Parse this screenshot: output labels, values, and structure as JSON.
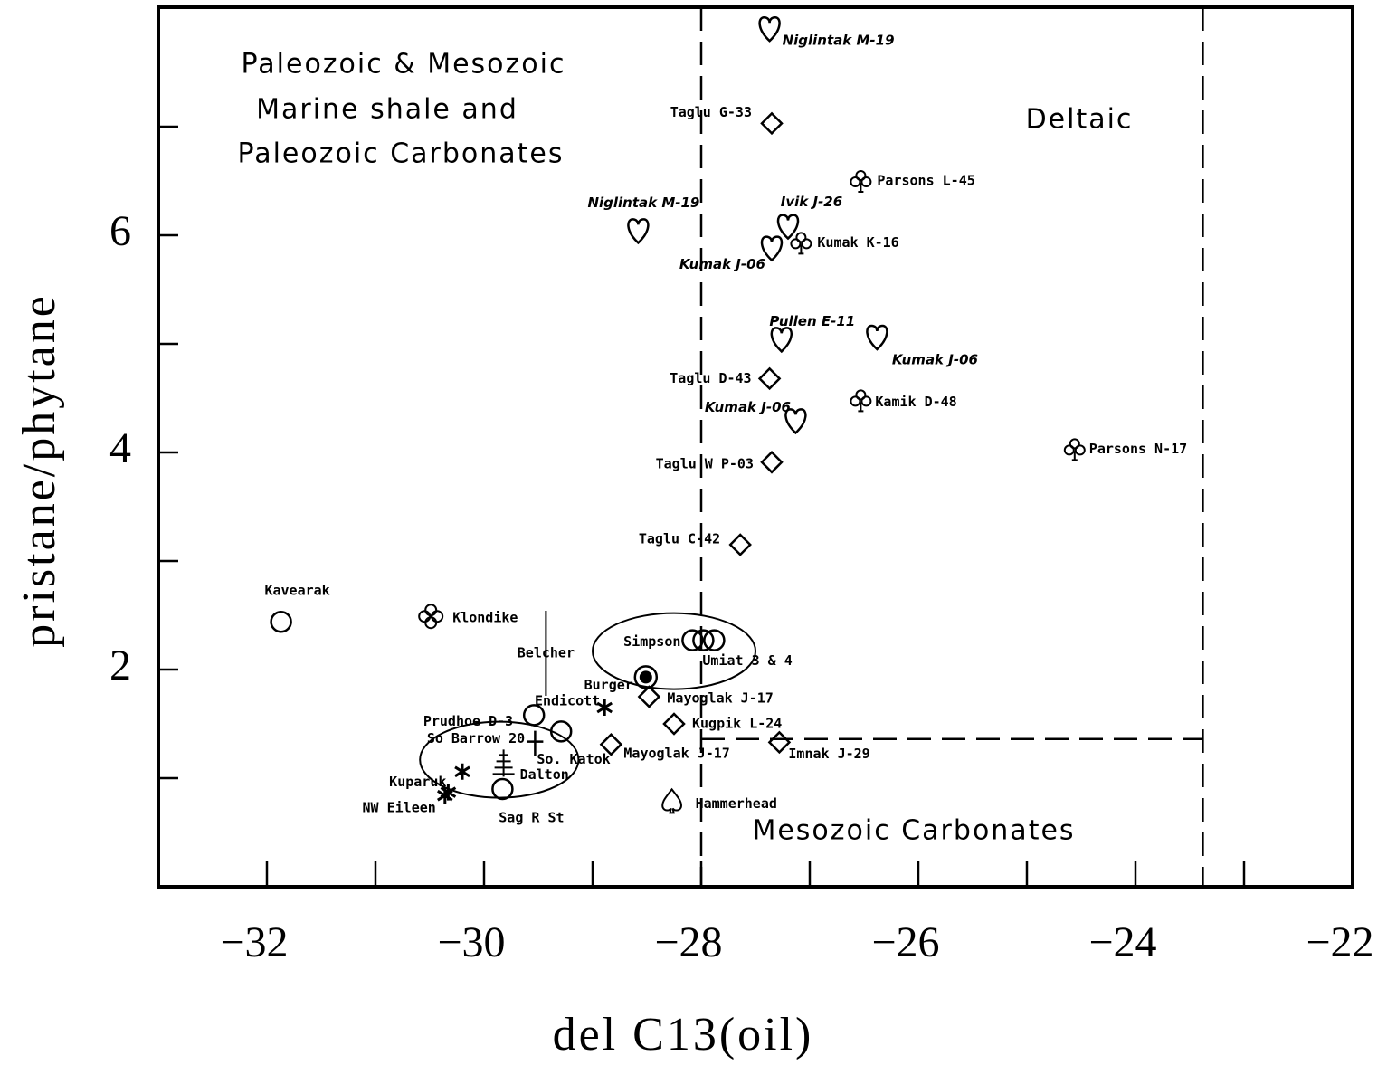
{
  "chart_data": {
    "type": "scatter",
    "x_label": "del C13(oil)",
    "y_label": "pristane/phytane",
    "xlim": [
      -33,
      -22
    ],
    "ylim": [
      0,
      8.1
    ],
    "xticks": [
      {
        "value": -32,
        "label": "−32"
      },
      {
        "value": -30,
        "label": "−30"
      },
      {
        "value": -28,
        "label": "−28"
      },
      {
        "value": -26,
        "label": "−26"
      },
      {
        "value": -24,
        "label": "−24"
      },
      {
        "value": -22,
        "label": "−22"
      }
    ],
    "xminor_ticks": [
      -31,
      -29,
      -27,
      -25,
      -23
    ],
    "yticks": [
      2,
      4,
      6
    ],
    "yminor_ticks": [
      1,
      3,
      5,
      7
    ],
    "region_labels": [
      "Paleozoic & Mesozoic",
      "Marine shale and",
      "Paleozoic Carbonates",
      "Deltaic",
      "Mesozoic Carbonates"
    ],
    "boundaries": {
      "x": [
        -28,
        -23.38
      ],
      "y": 1.36
    },
    "ellipses": [
      {
        "cx": -28.25,
        "cy": 2.17,
        "rx": 0.75,
        "ry": 0.35
      },
      {
        "cx": -29.86,
        "cy": 1.17,
        "rx": 0.73,
        "ry": 0.35
      }
    ],
    "points": [
      {
        "label": "Niglintak M-19",
        "x": -27.37,
        "y": 7.89,
        "marker": "heart"
      },
      {
        "label": "Taglu G-33",
        "x": -27.35,
        "y": 7.03,
        "marker": "diamond"
      },
      {
        "label": "Parsons L-45",
        "x": -26.53,
        "y": 6.5,
        "marker": "club"
      },
      {
        "label": "Niglintak M-19",
        "x": -28.58,
        "y": 6.03,
        "marker": "heart"
      },
      {
        "label": "Ivik J-26",
        "x": -27.2,
        "y": 6.07,
        "marker": "heart"
      },
      {
        "label": "Kumak K-16",
        "x": -27.08,
        "y": 5.93,
        "marker": "club"
      },
      {
        "label": "Kumak J-06",
        "x": -27.35,
        "y": 5.87,
        "marker": "heart"
      },
      {
        "label": "Pullen E-11",
        "x": -27.26,
        "y": 5.03,
        "marker": "heart"
      },
      {
        "label": "Kumak J-06",
        "x": -26.38,
        "y": 5.05,
        "marker": "heart"
      },
      {
        "label": "Taglu D-43",
        "x": -27.37,
        "y": 4.68,
        "marker": "diamond"
      },
      {
        "label": "Kamik D-48",
        "x": -26.53,
        "y": 4.48,
        "marker": "club"
      },
      {
        "label": "Kumak J-06",
        "x": -27.13,
        "y": 4.28,
        "marker": "heart"
      },
      {
        "label": "Parsons N-17",
        "x": -24.56,
        "y": 4.03,
        "marker": "club"
      },
      {
        "label": "Taglu W P-03",
        "x": -27.35,
        "y": 3.91,
        "marker": "diamond"
      },
      {
        "label": "Taglu C-42",
        "x": -27.64,
        "y": 3.15,
        "marker": "diamond"
      },
      {
        "label": "Kavearak",
        "x": -31.87,
        "y": 2.44,
        "marker": "circle"
      },
      {
        "label": "Klondike",
        "x": -30.49,
        "y": 2.49,
        "marker": "clover"
      },
      {
        "label": "Simpson",
        "x": -28.08,
        "y": 2.27,
        "marker": "circle"
      },
      {
        "label": "Umiat 3 & 4",
        "x": -27.98,
        "y": 2.27,
        "marker": "circle"
      },
      {
        "label": null,
        "x": -27.88,
        "y": 2.27,
        "marker": "circle"
      },
      {
        "label": "Belcher",
        "x": -29.43,
        "y": 2.15,
        "marker": "line"
      },
      {
        "label": "Burger",
        "x": -28.51,
        "y": 1.93,
        "marker": "target"
      },
      {
        "label": "Mayoglak J-17",
        "x": -28.48,
        "y": 1.75,
        "marker": "diamond"
      },
      {
        "label": "Endicott",
        "x": -28.89,
        "y": 1.65,
        "marker": "asterisk"
      },
      {
        "label": "Prudhoe D-3",
        "x": -29.54,
        "y": 1.58,
        "marker": "circle"
      },
      {
        "label": "So Barrow 20",
        "x": -29.29,
        "y": 1.43,
        "marker": "circle"
      },
      {
        "label": "Kugpik L-24",
        "x": -28.25,
        "y": 1.5,
        "marker": "diamond"
      },
      {
        "label": "So. Katok",
        "x": -29.53,
        "y": 1.32,
        "marker": "cross"
      },
      {
        "label": "Mayoglak J-17",
        "x": -28.83,
        "y": 1.31,
        "marker": "diamond"
      },
      {
        "label": "Imnak J-29",
        "x": -27.28,
        "y": 1.33,
        "marker": "diamond"
      },
      {
        "label": null,
        "x": -30.2,
        "y": 1.06,
        "marker": "asterisk"
      },
      {
        "label": "Dalton",
        "x": -29.82,
        "y": 1.13,
        "marker": "tree"
      },
      {
        "label": "Kuparuk",
        "x": -30.33,
        "y": 0.87,
        "marker": "asterisk"
      },
      {
        "label": "NW Eileen",
        "x": -30.36,
        "y": 0.84,
        "marker": "asterisk"
      },
      {
        "label": "Sag R St",
        "x": -29.83,
        "y": 0.9,
        "marker": "circle"
      },
      {
        "label": "Hammerhead",
        "x": -28.27,
        "y": 0.78,
        "marker": "spade"
      }
    ]
  }
}
